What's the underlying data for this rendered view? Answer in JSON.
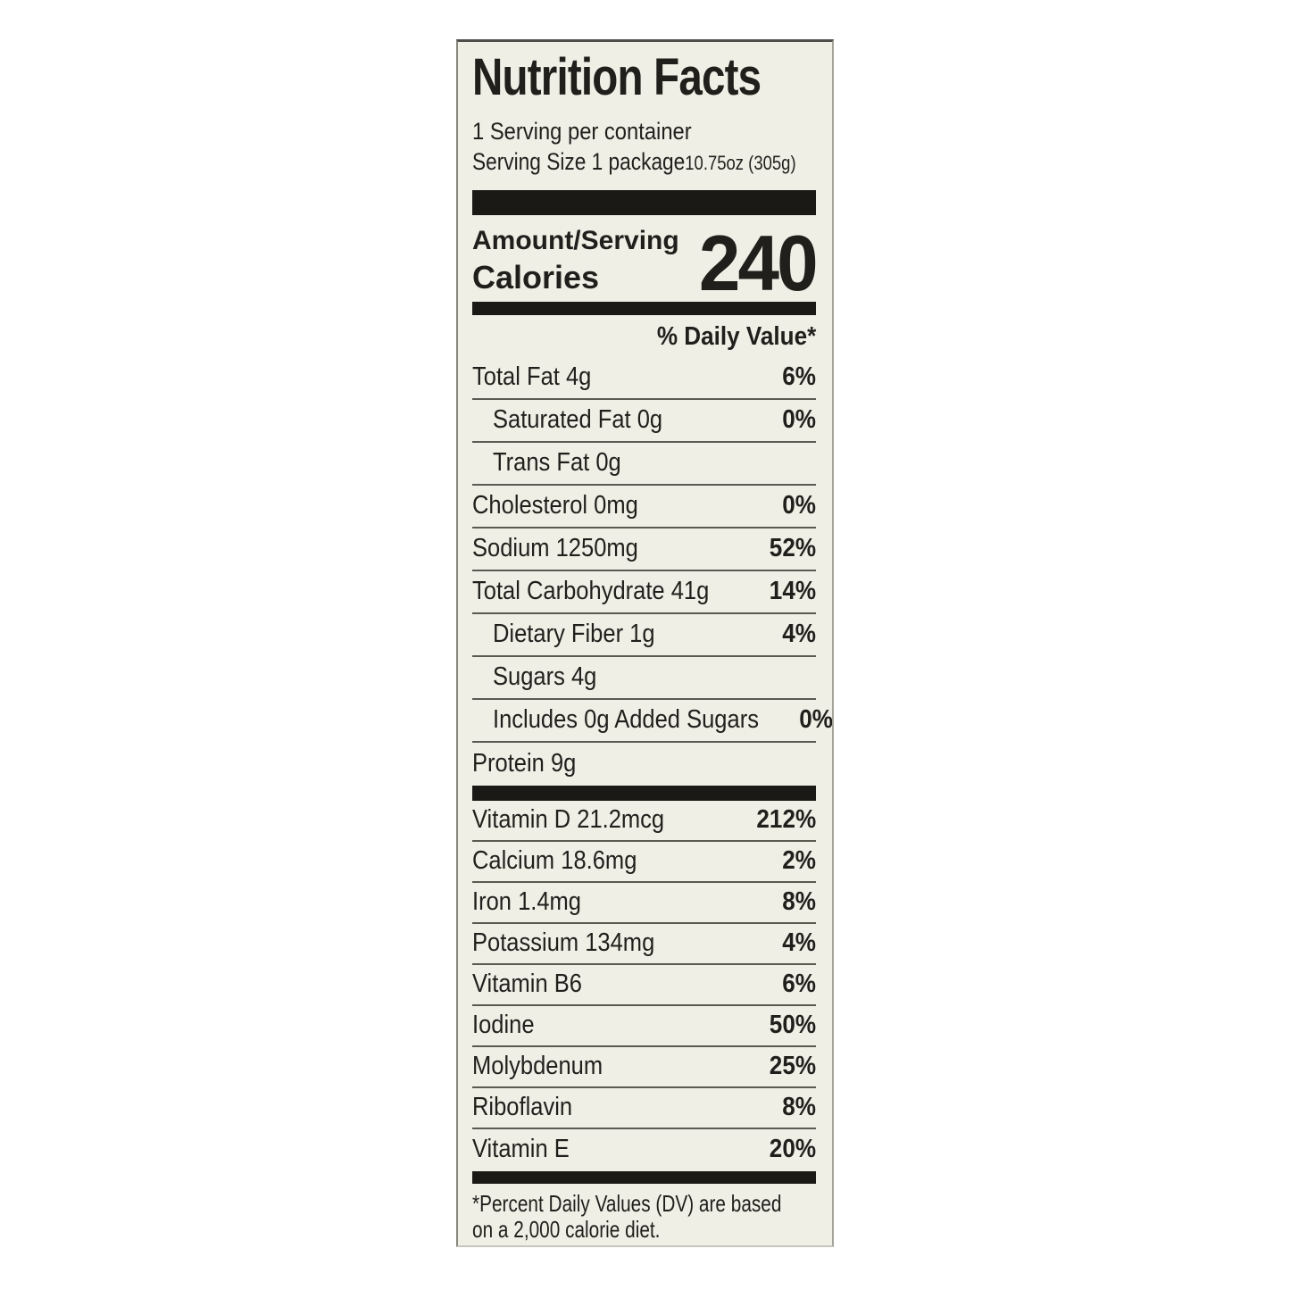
{
  "label": {
    "title": "Nutrition Facts",
    "servings_per_container": "1 Serving per container",
    "serving_size_label": "Serving Size 1 package",
    "serving_size_detail": "10.75oz (305g)",
    "amount_per_serving": "Amount/Serving",
    "calories_label": "Calories",
    "calories_value": "240",
    "daily_value_header": "% Daily Value*",
    "nutrients": [
      {
        "name": "Total Fat 4g",
        "dv": "6%"
      },
      {
        "name": "Saturated Fat 0g",
        "dv": "0%"
      },
      {
        "name": "Trans Fat 0g",
        "dv": ""
      },
      {
        "name": "Cholesterol 0mg",
        "dv": "0%"
      },
      {
        "name": "Sodium 1250mg",
        "dv": "52%"
      },
      {
        "name": "Total Carbohydrate 41g",
        "dv": "14%"
      },
      {
        "name": "Dietary Fiber 1g",
        "dv": "4%"
      },
      {
        "name": "Sugars 4g",
        "dv": ""
      },
      {
        "name": "Includes 0g Added Sugars",
        "dv": "0%"
      },
      {
        "name": "Protein 9g",
        "dv": ""
      }
    ],
    "micronutrients": [
      {
        "name": "Vitamin D 21.2mcg",
        "dv": "212%"
      },
      {
        "name": "Calcium 18.6mg",
        "dv": "2%"
      },
      {
        "name": "Iron 1.4mg",
        "dv": "8%"
      },
      {
        "name": "Potassium 134mg",
        "dv": "4%"
      },
      {
        "name": "Vitamin B6",
        "dv": "6%"
      },
      {
        "name": "Iodine",
        "dv": "50%"
      },
      {
        "name": "Molybdenum",
        "dv": "25%"
      },
      {
        "name": "Riboflavin",
        "dv": "8%"
      },
      {
        "name": "Vitamin E",
        "dv": "20%"
      }
    ],
    "footnote_line1": "*Percent Daily Values (DV) are based",
    "footnote_line2": "on a 2,000 calorie diet.",
    "colors": {
      "panel_bg": "#f0efe6",
      "text": "#201f1b",
      "bar": "#1a1915",
      "hairline": "#5b5951"
    }
  }
}
